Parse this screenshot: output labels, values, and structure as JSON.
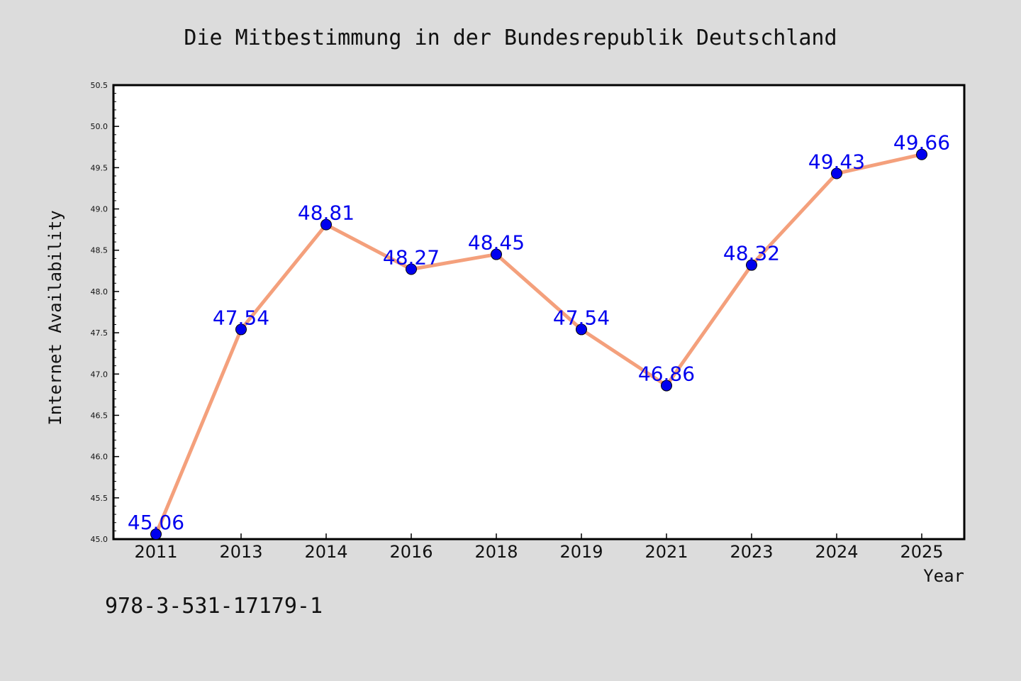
{
  "chart_data": {
    "type": "line",
    "title": "Die Mitbestimmung in der Bundesrepublik Deutschland",
    "xlabel": "Year",
    "ylabel": "Internet Availability",
    "categories": [
      "2011",
      "2013",
      "2014",
      "2016",
      "2018",
      "2019",
      "2021",
      "2023",
      "2024",
      "2025"
    ],
    "values": [
      45.06,
      47.54,
      48.81,
      48.27,
      48.45,
      47.54,
      46.86,
      48.32,
      49.43,
      49.66
    ],
    "data_labels": [
      "45.06",
      "47.54",
      "48.81",
      "48.27",
      "48.45",
      "47.54",
      "46.86",
      "48.32",
      "49.43",
      "49.66"
    ],
    "ylim": [
      45.0,
      50.5
    ],
    "yticks": [
      "45.0",
      "45.5",
      "46.0",
      "46.5",
      "47.0",
      "47.5",
      "48.0",
      "48.5",
      "49.0",
      "49.5",
      "50.0",
      "50.5"
    ],
    "grid": false,
    "legend": "none",
    "colors": {
      "line": "#f4a07c",
      "marker": "#0000ee",
      "label": "#0000ee",
      "background": "#dcdcdc",
      "plot_background": "#ffffff"
    }
  },
  "footer": {
    "isbn": "978-3-531-17179-1"
  }
}
